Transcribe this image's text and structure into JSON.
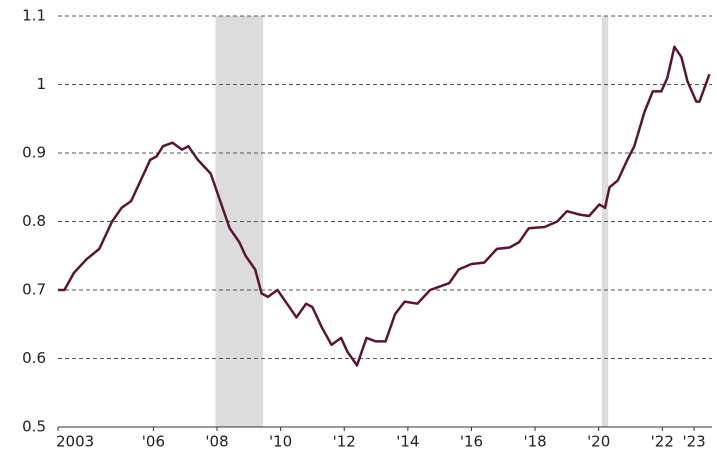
{
  "chart_data": {
    "type": "line",
    "x": [
      2003.0,
      2003.2,
      2003.5,
      2003.9,
      2004.3,
      2004.7,
      2005.0,
      2005.3,
      2005.6,
      2005.9,
      2006.1,
      2006.3,
      2006.6,
      2006.9,
      2007.1,
      2007.4,
      2007.8,
      2008.1,
      2008.4,
      2008.7,
      2008.9,
      2009.2,
      2009.4,
      2009.6,
      2009.9,
      2010.2,
      2010.5,
      2010.8,
      2011.0,
      2011.3,
      2011.6,
      2011.9,
      2012.1,
      2012.4,
      2012.7,
      2013.0,
      2013.3,
      2013.6,
      2013.9,
      2014.3,
      2014.7,
      2015.0,
      2015.3,
      2015.6,
      2016.0,
      2016.4,
      2016.8,
      2017.2,
      2017.5,
      2017.8,
      2018.3,
      2018.7,
      2019.0,
      2019.4,
      2019.7,
      2020.02,
      2020.2,
      2020.34,
      2020.6,
      2020.9,
      2021.12,
      2021.44,
      2021.7,
      2021.97,
      2022.16,
      2022.38,
      2022.6,
      2022.79,
      2023.07,
      2023.17,
      2023.48
    ],
    "series": [
      {
        "color": "#5b1436",
        "values": [
          0.7,
          0.7,
          0.725,
          0.745,
          0.76,
          0.8,
          0.82,
          0.83,
          0.86,
          0.89,
          0.895,
          0.91,
          0.915,
          0.905,
          0.91,
          0.89,
          0.87,
          0.83,
          0.79,
          0.77,
          0.75,
          0.73,
          0.695,
          0.69,
          0.7,
          0.68,
          0.66,
          0.68,
          0.675,
          0.645,
          0.62,
          0.63,
          0.61,
          0.59,
          0.63,
          0.625,
          0.625,
          0.665,
          0.683,
          0.68,
          0.7,
          0.705,
          0.71,
          0.73,
          0.738,
          0.74,
          0.76,
          0.762,
          0.77,
          0.79,
          0.792,
          0.8,
          0.815,
          0.81,
          0.808,
          0.825,
          0.82,
          0.85,
          0.86,
          0.89,
          0.91,
          0.96,
          0.99,
          0.99,
          1.01,
          1.055,
          1.04,
          1.005,
          0.975,
          0.975,
          1.015
        ]
      }
    ],
    "recessions": [
      [
        2007.95,
        2009.45
      ],
      [
        2020.1,
        2020.3
      ]
    ],
    "xlim": [
      2003,
      2023.5
    ],
    "xticks": [
      {
        "value": 2003,
        "label": "2003"
      },
      {
        "value": 2006,
        "label": "'06"
      },
      {
        "value": 2008,
        "label": "'08"
      },
      {
        "value": 2010,
        "label": "'10"
      },
      {
        "value": 2012,
        "label": "'12"
      },
      {
        "value": 2014,
        "label": "'14"
      },
      {
        "value": 2016,
        "label": "'16"
      },
      {
        "value": 2018,
        "label": "'18"
      },
      {
        "value": 2020,
        "label": "'20"
      },
      {
        "value": 2022,
        "label": "'22"
      },
      {
        "value": 2023,
        "label": "'23"
      }
    ],
    "ylim": [
      0.5,
      1.1
    ],
    "yticks": [
      0.5,
      0.6,
      0.7,
      0.8,
      0.9,
      1.0,
      1.1
    ],
    "grid": true
  }
}
